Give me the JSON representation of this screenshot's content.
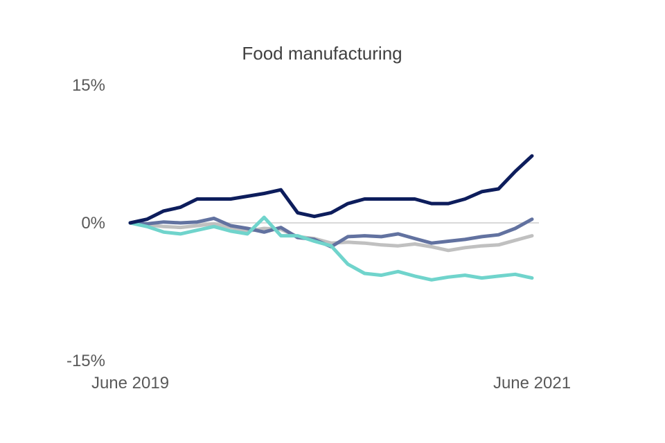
{
  "chart_data": {
    "type": "line",
    "title": "Food manufacturing",
    "xlabel": "",
    "ylabel": "",
    "ylim": [
      -15,
      15
    ],
    "y_ticks": [
      {
        "value": 15,
        "label": "15%"
      },
      {
        "value": 0,
        "label": "0%"
      },
      {
        "value": -15,
        "label": "-15%"
      }
    ],
    "x_count": 25,
    "x_tick_labels": [
      {
        "index": 0,
        "label": "June 2019"
      },
      {
        "index": 24,
        "label": "June 2021"
      }
    ],
    "grid": false,
    "zero_line_color": "#d9d9d9",
    "series": [
      {
        "name": "series-light-grey",
        "color": "#c0c0c0",
        "values": [
          0,
          -0.2,
          -0.4,
          -0.5,
          -0.3,
          -0.1,
          -0.5,
          -0.9,
          -0.6,
          -0.7,
          -1.5,
          -1.7,
          -2.2,
          -2.1,
          -2.2,
          -2.4,
          -2.5,
          -2.3,
          -2.6,
          -3.0,
          -2.7,
          -2.5,
          -2.4,
          -1.9,
          -1.4
        ]
      },
      {
        "name": "series-mid-blue",
        "color": "#6272a0",
        "values": [
          0,
          -0.1,
          0.1,
          0.0,
          0.1,
          0.5,
          -0.3,
          -0.6,
          -1.0,
          -0.5,
          -1.6,
          -1.8,
          -2.6,
          -1.5,
          -1.4,
          -1.5,
          -1.2,
          -1.7,
          -2.2,
          -2.0,
          -1.8,
          -1.5,
          -1.3,
          -0.6,
          0.4
        ]
      },
      {
        "name": "series-turquoise",
        "color": "#70d4cc",
        "values": [
          0,
          -0.4,
          -1.0,
          -1.2,
          -0.8,
          -0.4,
          -0.9,
          -1.2,
          0.6,
          -1.4,
          -1.4,
          -2.0,
          -2.5,
          -4.5,
          -5.5,
          -5.7,
          -5.3,
          -5.8,
          -6.2,
          -5.9,
          -5.7,
          -6.0,
          -5.8,
          -5.6,
          -6.0
        ]
      },
      {
        "name": "series-dark-navy",
        "color": "#0d1d5c",
        "values": [
          0,
          0.4,
          1.3,
          1.7,
          2.6,
          2.6,
          2.6,
          2.9,
          3.2,
          3.6,
          1.1,
          0.7,
          1.1,
          2.1,
          2.6,
          2.6,
          2.6,
          2.6,
          2.1,
          2.1,
          2.6,
          3.4,
          3.7,
          5.6,
          7.3
        ]
      }
    ]
  }
}
